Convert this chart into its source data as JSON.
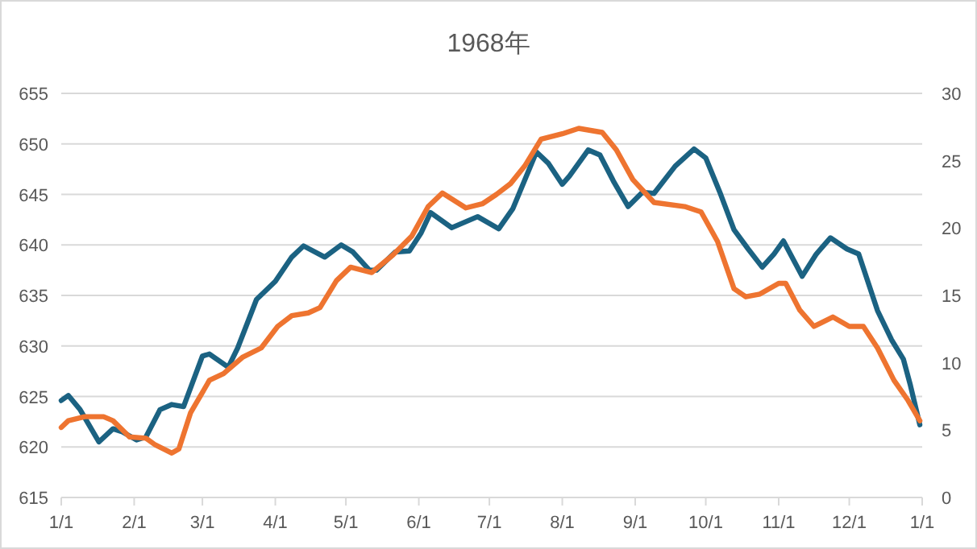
{
  "chart_data": {
    "type": "line",
    "title": "1968年",
    "grid": "y",
    "line_style": "solid",
    "marker": "none",
    "xlim": [
      "1968-01-01",
      "1969-01-01"
    ],
    "xticks": [
      {
        "value": "1968-01-01",
        "label": "1/1"
      },
      {
        "value": "1968-02-01",
        "label": "2/1"
      },
      {
        "value": "1968-03-01",
        "label": "3/1"
      },
      {
        "value": "1968-04-01",
        "label": "4/1"
      },
      {
        "value": "1968-05-01",
        "label": "5/1"
      },
      {
        "value": "1968-06-01",
        "label": "6/1"
      },
      {
        "value": "1968-07-01",
        "label": "7/1"
      },
      {
        "value": "1968-08-01",
        "label": "8/1"
      },
      {
        "value": "1968-09-01",
        "label": "9/1"
      },
      {
        "value": "1968-10-01",
        "label": "10/1"
      },
      {
        "value": "1968-11-01",
        "label": "11/1"
      },
      {
        "value": "1968-12-01",
        "label": "12/1"
      },
      {
        "value": "1969-01-01",
        "label": "1/1"
      }
    ],
    "ylim": [
      615,
      655
    ],
    "yticks": [
      615,
      620,
      625,
      630,
      635,
      640,
      645,
      650,
      655
    ],
    "y2lim": [
      0,
      30
    ],
    "y2ticks": [
      0,
      5,
      10,
      15,
      20,
      25,
      30
    ],
    "series": [
      {
        "color": "#1b6282",
        "x": [
          "1968-01-01",
          "1968-01-04",
          "1968-01-09",
          "1968-01-17",
          "1968-01-23",
          "1968-01-27",
          "1968-02-02",
          "1968-02-06",
          "1968-02-12",
          "1968-02-17",
          "1968-02-22",
          "1968-03-01",
          "1968-03-04",
          "1968-03-12",
          "1968-03-16",
          "1968-03-24",
          "1968-04-01",
          "1968-04-08",
          "1968-04-13",
          "1968-04-22",
          "1968-04-29",
          "1968-05-04",
          "1968-05-11",
          "1968-05-14",
          "1968-05-22",
          "1968-05-28",
          "1968-06-02",
          "1968-06-06",
          "1968-06-15",
          "1968-06-26",
          "1968-07-05",
          "1968-07-11",
          "1968-07-21",
          "1968-07-26",
          "1968-08-01",
          "1968-08-04",
          "1968-08-12",
          "1968-08-17",
          "1968-08-23",
          "1968-08-29",
          "1968-09-04",
          "1968-09-09",
          "1968-09-18",
          "1968-09-26",
          "1968-10-01",
          "1968-10-07",
          "1968-10-13",
          "1968-10-19",
          "1968-10-25",
          "1968-10-30",
          "1968-11-03",
          "1968-11-11",
          "1968-11-17",
          "1968-11-23",
          "1968-11-30",
          "1968-12-05",
          "1968-12-13",
          "1968-12-19",
          "1968-12-24",
          "1968-12-27",
          "1968-12-31"
        ],
        "values": [
          624.6,
          625.1,
          623.7,
          620.5,
          621.8,
          621.5,
          620.7,
          621,
          623.7,
          624.2,
          624,
          629,
          629.2,
          627.9,
          629.8,
          634.6,
          636.4,
          638.8,
          639.9,
          638.8,
          640,
          639.3,
          637.5,
          637.5,
          639.3,
          639.4,
          641.2,
          643.2,
          641.7,
          642.8,
          641.6,
          643.6,
          649.2,
          648.1,
          646,
          646.8,
          649.4,
          648.9,
          646.2,
          643.8,
          645.2,
          645.1,
          647.8,
          649.5,
          648.6,
          645.2,
          641.5,
          639.6,
          637.8,
          639.1,
          640.4,
          636.9,
          639.1,
          640.7,
          639.6,
          639.1,
          633.5,
          630.6,
          628.7,
          626.1,
          622.2
        ]
      },
      {
        "color": "#ee7430",
        "axis": "y2",
        "x": [
          "1968-01-01",
          "1968-01-04",
          "1968-01-11",
          "1968-01-19",
          "1968-01-23",
          "1968-01-30",
          "1968-02-06",
          "1968-02-10",
          "1968-02-17",
          "1968-02-20",
          "1968-02-25",
          "1968-03-04",
          "1968-03-10",
          "1968-03-18",
          "1968-03-26",
          "1968-04-02",
          "1968-04-08",
          "1968-04-15",
          "1968-04-20",
          "1968-04-27",
          "1968-05-03",
          "1968-05-12",
          "1968-05-21",
          "1968-05-29",
          "1968-06-05",
          "1968-06-11",
          "1968-06-21",
          "1968-06-28",
          "1968-07-04",
          "1968-07-10",
          "1968-07-16",
          "1968-07-23",
          "1968-08-01",
          "1968-08-08",
          "1968-08-18",
          "1968-08-24",
          "1968-08-31",
          "1968-09-09",
          "1968-09-22",
          "1968-09-29",
          "1968-10-06",
          "1968-10-13",
          "1968-10-18",
          "1968-10-24",
          "1968-11-01",
          "1968-11-04",
          "1968-11-10",
          "1968-11-16",
          "1968-11-24",
          "1968-12-01",
          "1968-12-07",
          "1968-12-13",
          "1968-12-20",
          "1968-12-26",
          "1968-12-31"
        ],
        "values": [
          5.2,
          5.7,
          6.0,
          6.0,
          5.7,
          4.5,
          4.4,
          3.9,
          3.3,
          3.6,
          6.3,
          8.7,
          9.2,
          10.4,
          11.1,
          12.7,
          13.5,
          13.7,
          14.1,
          16.1,
          17.1,
          16.7,
          18.0,
          19.4,
          21.6,
          22.6,
          21.5,
          21.8,
          22.5,
          23.3,
          24.6,
          26.6,
          27.0,
          27.4,
          27.1,
          25.8,
          23.6,
          21.9,
          21.6,
          21.2,
          19.0,
          15.5,
          14.9,
          15.1,
          15.9,
          15.9,
          13.9,
          12.7,
          13.4,
          12.7,
          12.7,
          11.1,
          8.7,
          7.2,
          5.7
        ]
      }
    ]
  }
}
